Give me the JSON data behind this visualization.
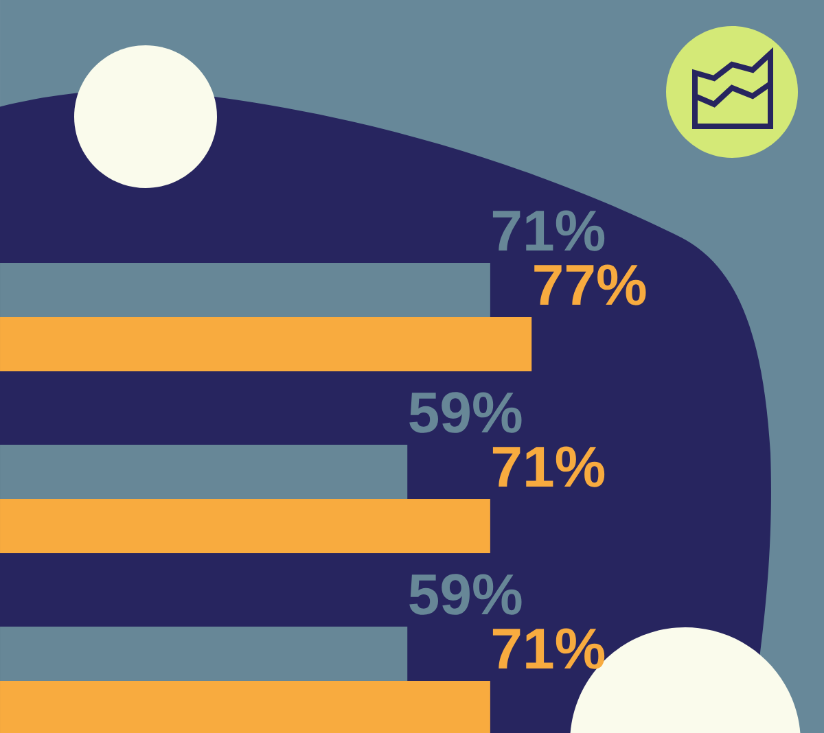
{
  "chart_data": {
    "type": "bar",
    "orientation": "horizontal",
    "categories": [
      null,
      null,
      null
    ],
    "tick_labels": false,
    "series": [
      {
        "color": "#678797",
        "values": [
          71,
          59,
          59
        ],
        "value_labels": [
          "71%",
          "59%",
          "59%"
        ]
      },
      {
        "color": "#f8ab3f",
        "values": [
          77,
          71,
          71
        ],
        "value_labels": [
          "77%",
          "71%",
          "71%"
        ]
      }
    ]
  }
}
